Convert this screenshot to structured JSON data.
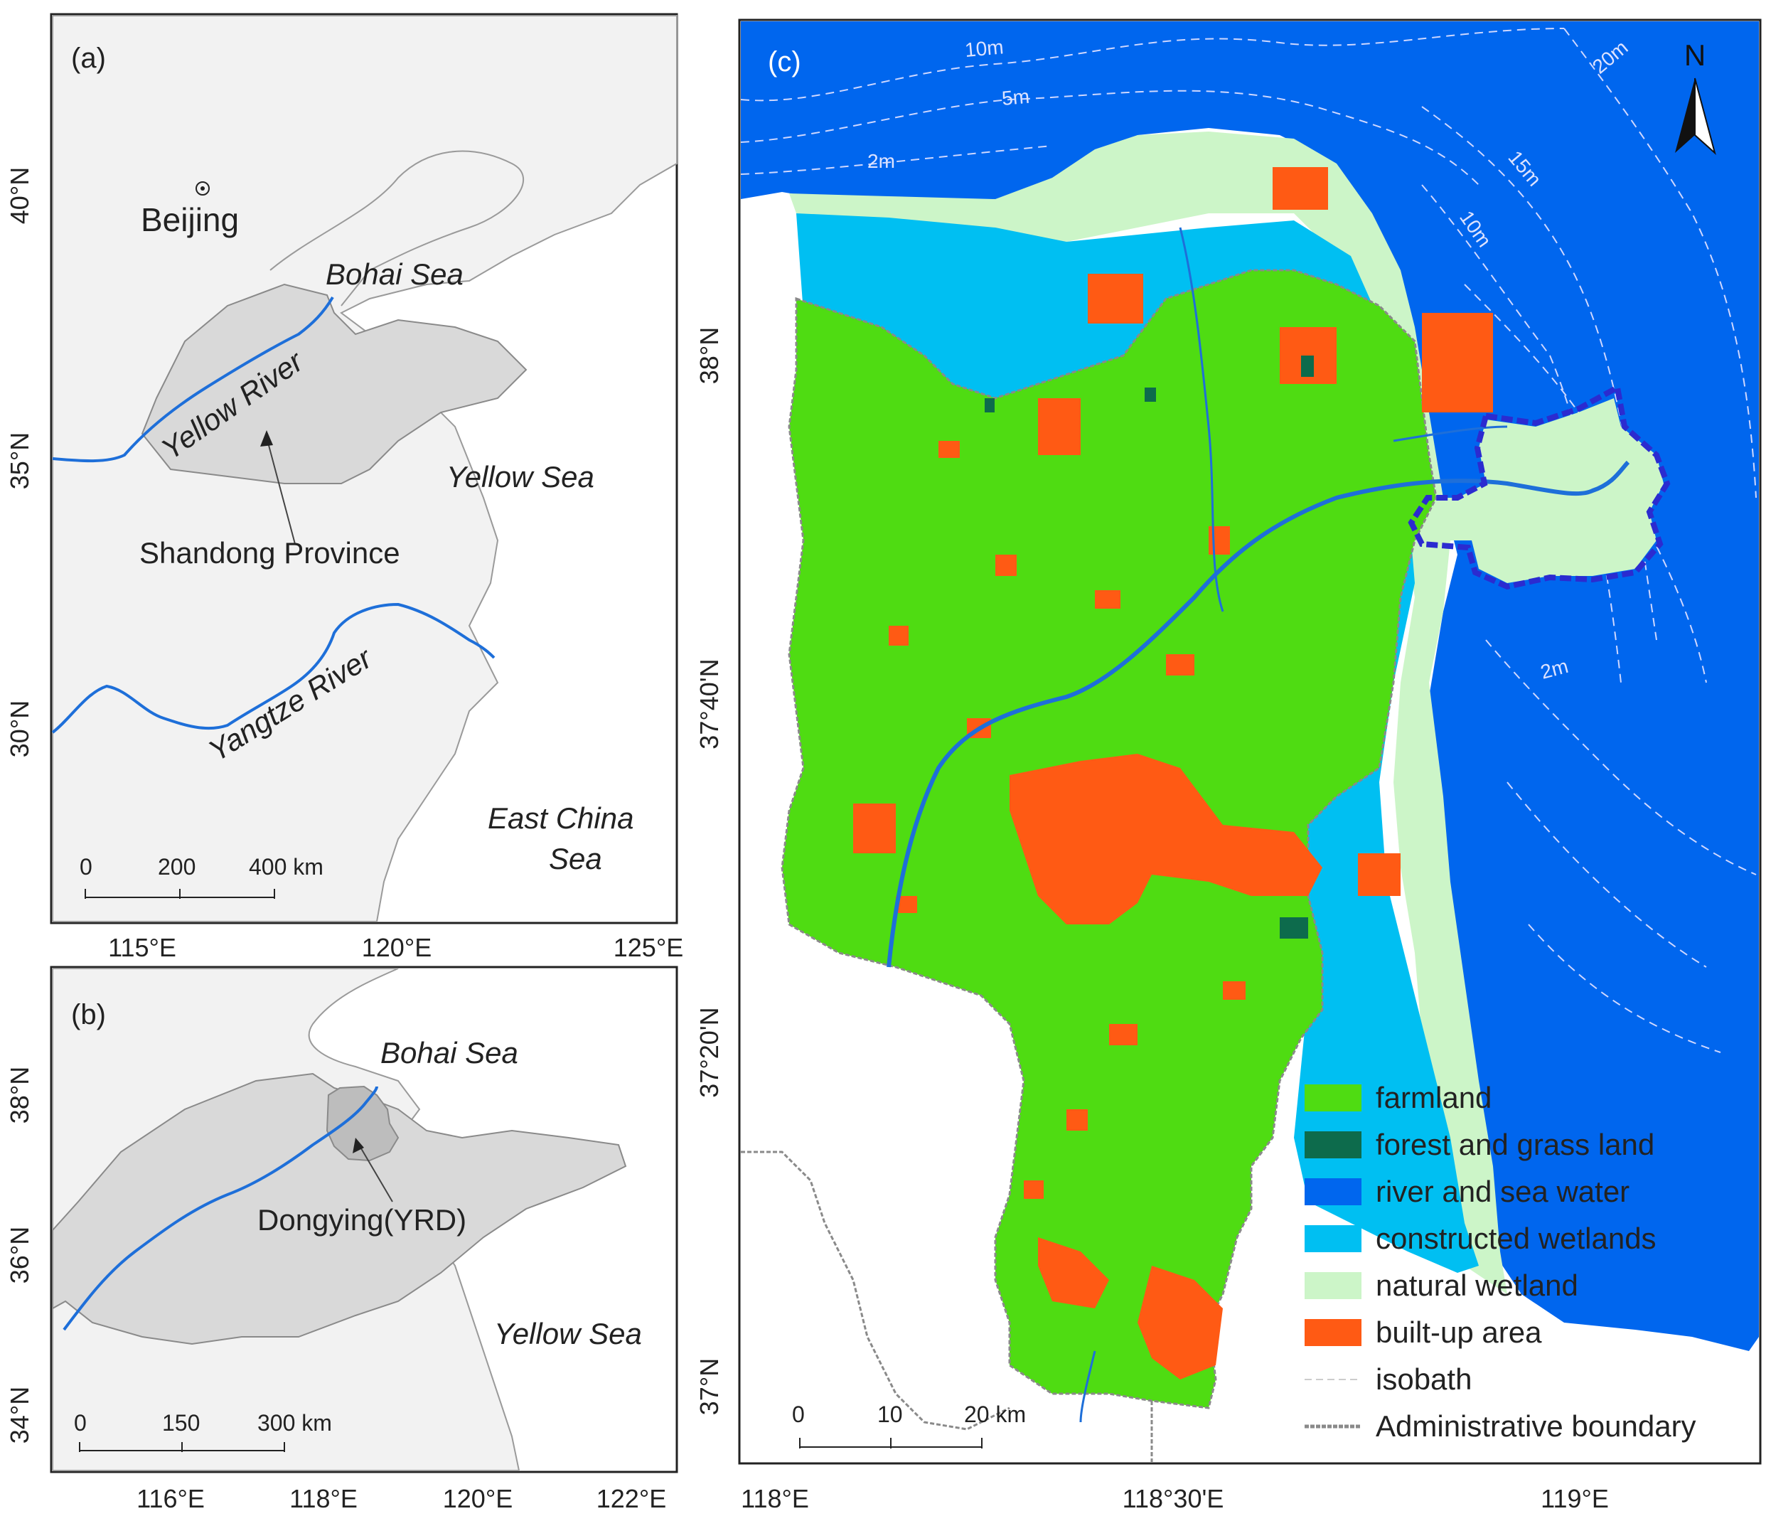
{
  "panel_a": {
    "label": "(a)",
    "city": "Beijing",
    "seas": [
      "Bohai Sea",
      "Yellow Sea",
      "East China",
      "Sea"
    ],
    "rivers": [
      "Yellow River",
      "Yangtze River"
    ],
    "province": "Shandong Province",
    "scale": [
      "0",
      "200",
      "400 km"
    ],
    "lat_ticks": [
      "40°N",
      "35°N",
      "30°N"
    ],
    "lon_ticks": [
      "115°E",
      "120°E",
      "125°E"
    ]
  },
  "panel_b": {
    "label": "(b)",
    "seas": [
      "Bohai Sea",
      "Yellow Sea"
    ],
    "region": "Dongying(YRD)",
    "scale": [
      "0",
      "150",
      "300 km"
    ],
    "lat_ticks": [
      "38°N",
      "36°N",
      "34°N"
    ],
    "lon_ticks": [
      "116°E",
      "118°E",
      "120°E",
      "122°E"
    ]
  },
  "panel_c": {
    "label": "(c)",
    "north_arrow": "N",
    "isobath_labels": [
      "10m",
      "5m",
      "2m",
      "20m",
      "15m",
      "10m",
      "2m"
    ],
    "lat_ticks": [
      "38°N",
      "37°40'N",
      "37°20'N",
      "37°N"
    ],
    "lon_ticks": [
      "118°E",
      "118°30'E",
      "119°E"
    ],
    "scale": [
      "0",
      "10",
      "20 km"
    ],
    "legend": [
      {
        "label": "farmland",
        "color": "#4fdc12",
        "kind": "box"
      },
      {
        "label": "forest and grass land",
        "color": "#0d6b4c",
        "kind": "box"
      },
      {
        "label": "river and sea water",
        "color": "#0066ee",
        "kind": "box"
      },
      {
        "label": "constructed wetlands",
        "color": "#00bff2",
        "kind": "box"
      },
      {
        "label": "natural wetland",
        "color": "#ccf5c8",
        "kind": "box"
      },
      {
        "label": "built-up area",
        "color": "#ff5a14",
        "kind": "box"
      },
      {
        "label": "isobath",
        "color": "#cccccc",
        "kind": "dash"
      },
      {
        "label": "Administrative boundary",
        "color": "#8a8a8a",
        "kind": "line"
      }
    ]
  },
  "colors": {
    "land": "#f2f2f2",
    "province_fill": "#d9d9d9",
    "river": "#1e6fd9",
    "sea": "#0066ee",
    "highlight_outline": "#2b2bd0"
  }
}
